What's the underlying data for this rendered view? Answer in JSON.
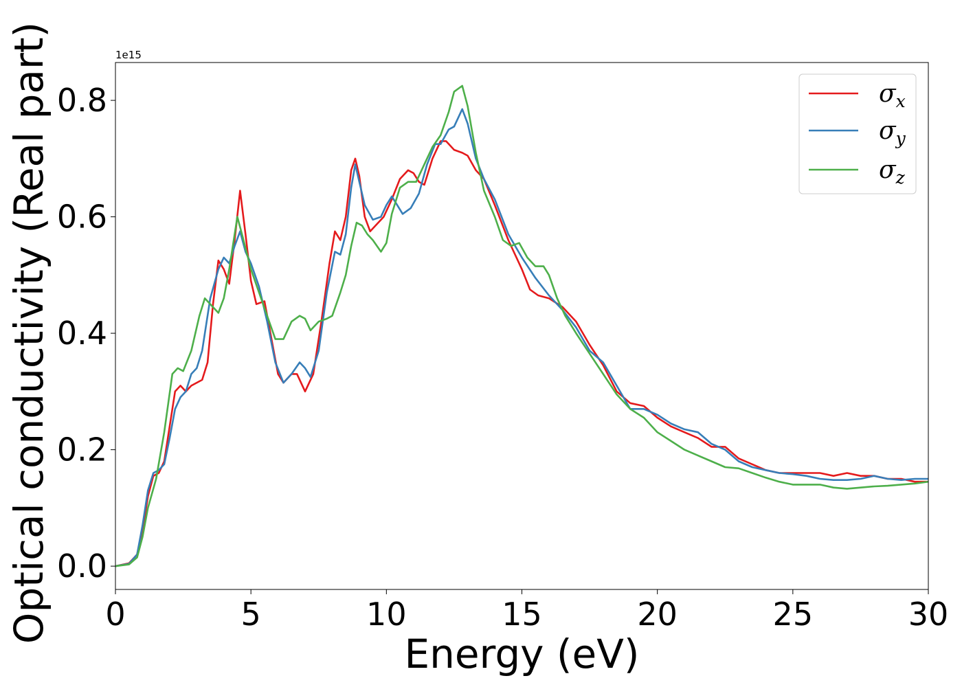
{
  "chart_data": {
    "type": "line",
    "title": "",
    "xlabel": "Energy (eV)",
    "ylabel": "Optical conductivity (Real part)",
    "y_offset_label": "1e15",
    "xlim": [
      0,
      30
    ],
    "ylim": [
      -0.04,
      0.865
    ],
    "xticks": [
      0,
      5,
      10,
      15,
      20,
      25,
      30
    ],
    "xtick_labels": [
      "0",
      "5",
      "10",
      "15",
      "20",
      "25",
      "30"
    ],
    "yticks": [
      0.0,
      0.2,
      0.4,
      0.6,
      0.8
    ],
    "ytick_labels": [
      "0.0",
      "0.2",
      "0.4",
      "0.6",
      "0.8"
    ],
    "grid": false,
    "legend_position": "top-right",
    "series": [
      {
        "name": "σ",
        "subscript": "x",
        "color": "#e41a1c",
        "points": [
          [
            0,
            0
          ],
          [
            0.5,
            0.005
          ],
          [
            0.8,
            0.02
          ],
          [
            1,
            0.06
          ],
          [
            1.2,
            0.12
          ],
          [
            1.4,
            0.155
          ],
          [
            1.6,
            0.16
          ],
          [
            1.8,
            0.18
          ],
          [
            2,
            0.24
          ],
          [
            2.2,
            0.3
          ],
          [
            2.4,
            0.31
          ],
          [
            2.6,
            0.3
          ],
          [
            2.8,
            0.31
          ],
          [
            3,
            0.315
          ],
          [
            3.2,
            0.32
          ],
          [
            3.4,
            0.35
          ],
          [
            3.6,
            0.45
          ],
          [
            3.8,
            0.525
          ],
          [
            4,
            0.51
          ],
          [
            4.2,
            0.485
          ],
          [
            4.4,
            0.56
          ],
          [
            4.6,
            0.645
          ],
          [
            4.8,
            0.57
          ],
          [
            5,
            0.49
          ],
          [
            5.2,
            0.45
          ],
          [
            5.5,
            0.455
          ],
          [
            5.8,
            0.38
          ],
          [
            6.0,
            0.33
          ],
          [
            6.2,
            0.315
          ],
          [
            6.5,
            0.33
          ],
          [
            6.7,
            0.33
          ],
          [
            7.0,
            0.3
          ],
          [
            7.3,
            0.33
          ],
          [
            7.6,
            0.42
          ],
          [
            7.9,
            0.52
          ],
          [
            8.1,
            0.575
          ],
          [
            8.3,
            0.56
          ],
          [
            8.5,
            0.6
          ],
          [
            8.7,
            0.68
          ],
          [
            8.85,
            0.7
          ],
          [
            9.0,
            0.67
          ],
          [
            9.2,
            0.6
          ],
          [
            9.4,
            0.575
          ],
          [
            9.6,
            0.585
          ],
          [
            9.9,
            0.6
          ],
          [
            10.2,
            0.63
          ],
          [
            10.5,
            0.665
          ],
          [
            10.8,
            0.68
          ],
          [
            11.0,
            0.675
          ],
          [
            11.2,
            0.66
          ],
          [
            11.4,
            0.655
          ],
          [
            11.7,
            0.7
          ],
          [
            12.0,
            0.73
          ],
          [
            12.2,
            0.73
          ],
          [
            12.5,
            0.715
          ],
          [
            12.8,
            0.71
          ],
          [
            13.0,
            0.705
          ],
          [
            13.3,
            0.68
          ],
          [
            13.6,
            0.665
          ],
          [
            14.0,
            0.62
          ],
          [
            14.5,
            0.56
          ],
          [
            15.0,
            0.51
          ],
          [
            15.3,
            0.475
          ],
          [
            15.6,
            0.465
          ],
          [
            16.0,
            0.46
          ],
          [
            16.5,
            0.445
          ],
          [
            17.0,
            0.42
          ],
          [
            17.5,
            0.38
          ],
          [
            18.0,
            0.345
          ],
          [
            18.5,
            0.3
          ],
          [
            19.0,
            0.28
          ],
          [
            19.5,
            0.275
          ],
          [
            20.0,
            0.255
          ],
          [
            20.5,
            0.24
          ],
          [
            21.0,
            0.23
          ],
          [
            21.5,
            0.22
          ],
          [
            22.0,
            0.205
          ],
          [
            22.5,
            0.205
          ],
          [
            23.0,
            0.185
          ],
          [
            23.5,
            0.175
          ],
          [
            24.0,
            0.165
          ],
          [
            24.5,
            0.16
          ],
          [
            25.0,
            0.16
          ],
          [
            25.5,
            0.16
          ],
          [
            26.0,
            0.16
          ],
          [
            26.5,
            0.155
          ],
          [
            27.0,
            0.16
          ],
          [
            27.5,
            0.155
          ],
          [
            28.0,
            0.155
          ],
          [
            28.5,
            0.15
          ],
          [
            29.0,
            0.15
          ],
          [
            29.5,
            0.145
          ],
          [
            30.0,
            0.145
          ]
        ]
      },
      {
        "name": "σ",
        "subscript": "y",
        "color": "#377eb8",
        "points": [
          [
            0,
            0
          ],
          [
            0.5,
            0.004
          ],
          [
            0.8,
            0.02
          ],
          [
            1,
            0.07
          ],
          [
            1.2,
            0.13
          ],
          [
            1.4,
            0.16
          ],
          [
            1.6,
            0.165
          ],
          [
            1.8,
            0.175
          ],
          [
            2,
            0.22
          ],
          [
            2.2,
            0.27
          ],
          [
            2.4,
            0.29
          ],
          [
            2.6,
            0.3
          ],
          [
            2.8,
            0.33
          ],
          [
            3,
            0.34
          ],
          [
            3.2,
            0.37
          ],
          [
            3.5,
            0.46
          ],
          [
            3.8,
            0.51
          ],
          [
            4.0,
            0.53
          ],
          [
            4.2,
            0.52
          ],
          [
            4.4,
            0.55
          ],
          [
            4.6,
            0.575
          ],
          [
            4.8,
            0.54
          ],
          [
            5.0,
            0.52
          ],
          [
            5.3,
            0.48
          ],
          [
            5.6,
            0.42
          ],
          [
            5.9,
            0.35
          ],
          [
            6.2,
            0.315
          ],
          [
            6.5,
            0.33
          ],
          [
            6.8,
            0.35
          ],
          [
            7.0,
            0.34
          ],
          [
            7.2,
            0.325
          ],
          [
            7.5,
            0.37
          ],
          [
            7.8,
            0.47
          ],
          [
            8.1,
            0.54
          ],
          [
            8.3,
            0.535
          ],
          [
            8.5,
            0.57
          ],
          [
            8.7,
            0.65
          ],
          [
            8.85,
            0.69
          ],
          [
            9.0,
            0.66
          ],
          [
            9.2,
            0.62
          ],
          [
            9.5,
            0.595
          ],
          [
            9.8,
            0.6
          ],
          [
            10.0,
            0.62
          ],
          [
            10.2,
            0.635
          ],
          [
            10.4,
            0.62
          ],
          [
            10.6,
            0.605
          ],
          [
            10.9,
            0.615
          ],
          [
            11.2,
            0.64
          ],
          [
            11.5,
            0.69
          ],
          [
            11.8,
            0.725
          ],
          [
            12.0,
            0.725
          ],
          [
            12.3,
            0.75
          ],
          [
            12.5,
            0.755
          ],
          [
            12.8,
            0.785
          ],
          [
            13.0,
            0.76
          ],
          [
            13.3,
            0.7
          ],
          [
            13.6,
            0.665
          ],
          [
            14.0,
            0.63
          ],
          [
            14.5,
            0.57
          ],
          [
            15.0,
            0.53
          ],
          [
            15.5,
            0.495
          ],
          [
            16.0,
            0.465
          ],
          [
            16.5,
            0.44
          ],
          [
            17.0,
            0.41
          ],
          [
            17.5,
            0.37
          ],
          [
            18.0,
            0.35
          ],
          [
            18.5,
            0.31
          ],
          [
            19.0,
            0.27
          ],
          [
            19.5,
            0.27
          ],
          [
            20.0,
            0.26
          ],
          [
            20.5,
            0.245
          ],
          [
            21.0,
            0.235
          ],
          [
            21.5,
            0.23
          ],
          [
            22.0,
            0.21
          ],
          [
            22.5,
            0.2
          ],
          [
            23.0,
            0.18
          ],
          [
            23.5,
            0.17
          ],
          [
            24.0,
            0.165
          ],
          [
            24.5,
            0.16
          ],
          [
            25.0,
            0.158
          ],
          [
            25.5,
            0.155
          ],
          [
            26.0,
            0.15
          ],
          [
            26.5,
            0.148
          ],
          [
            27.0,
            0.148
          ],
          [
            27.5,
            0.15
          ],
          [
            28.0,
            0.155
          ],
          [
            28.5,
            0.15
          ],
          [
            29.0,
            0.148
          ],
          [
            29.5,
            0.15
          ],
          [
            30.0,
            0.15
          ]
        ]
      },
      {
        "name": "σ",
        "subscript": "z",
        "color": "#4daf4a",
        "points": [
          [
            0,
            0
          ],
          [
            0.5,
            0.003
          ],
          [
            0.8,
            0.015
          ],
          [
            1,
            0.05
          ],
          [
            1.2,
            0.1
          ],
          [
            1.5,
            0.15
          ],
          [
            1.8,
            0.23
          ],
          [
            2.1,
            0.33
          ],
          [
            2.3,
            0.34
          ],
          [
            2.5,
            0.335
          ],
          [
            2.8,
            0.37
          ],
          [
            3.1,
            0.43
          ],
          [
            3.3,
            0.46
          ],
          [
            3.5,
            0.45
          ],
          [
            3.8,
            0.435
          ],
          [
            4.0,
            0.46
          ],
          [
            4.2,
            0.51
          ],
          [
            4.5,
            0.6
          ],
          [
            4.7,
            0.565
          ],
          [
            5.0,
            0.51
          ],
          [
            5.3,
            0.47
          ],
          [
            5.6,
            0.43
          ],
          [
            5.9,
            0.39
          ],
          [
            6.2,
            0.39
          ],
          [
            6.5,
            0.42
          ],
          [
            6.8,
            0.43
          ],
          [
            7.0,
            0.425
          ],
          [
            7.2,
            0.405
          ],
          [
            7.5,
            0.42
          ],
          [
            7.8,
            0.425
          ],
          [
            8.0,
            0.43
          ],
          [
            8.3,
            0.47
          ],
          [
            8.5,
            0.5
          ],
          [
            8.7,
            0.55
          ],
          [
            8.9,
            0.59
          ],
          [
            9.1,
            0.585
          ],
          [
            9.3,
            0.57
          ],
          [
            9.5,
            0.56
          ],
          [
            9.8,
            0.54
          ],
          [
            10.0,
            0.555
          ],
          [
            10.2,
            0.605
          ],
          [
            10.5,
            0.65
          ],
          [
            10.8,
            0.66
          ],
          [
            11.1,
            0.66
          ],
          [
            11.4,
            0.69
          ],
          [
            11.7,
            0.72
          ],
          [
            12.0,
            0.74
          ],
          [
            12.3,
            0.78
          ],
          [
            12.5,
            0.815
          ],
          [
            12.8,
            0.825
          ],
          [
            13.0,
            0.79
          ],
          [
            13.3,
            0.71
          ],
          [
            13.6,
            0.645
          ],
          [
            14.0,
            0.6
          ],
          [
            14.3,
            0.56
          ],
          [
            14.6,
            0.55
          ],
          [
            14.9,
            0.555
          ],
          [
            15.2,
            0.53
          ],
          [
            15.5,
            0.515
          ],
          [
            15.8,
            0.515
          ],
          [
            16.0,
            0.5
          ],
          [
            16.3,
            0.46
          ],
          [
            16.6,
            0.43
          ],
          [
            17.0,
            0.4
          ],
          [
            17.5,
            0.365
          ],
          [
            18.0,
            0.33
          ],
          [
            18.5,
            0.295
          ],
          [
            19.0,
            0.27
          ],
          [
            19.5,
            0.255
          ],
          [
            20.0,
            0.23
          ],
          [
            20.5,
            0.215
          ],
          [
            21.0,
            0.2
          ],
          [
            21.5,
            0.19
          ],
          [
            22.0,
            0.18
          ],
          [
            22.5,
            0.17
          ],
          [
            23.0,
            0.168
          ],
          [
            23.5,
            0.16
          ],
          [
            24.0,
            0.152
          ],
          [
            24.5,
            0.145
          ],
          [
            25.0,
            0.14
          ],
          [
            25.5,
            0.14
          ],
          [
            26.0,
            0.14
          ],
          [
            26.5,
            0.135
          ],
          [
            27.0,
            0.133
          ],
          [
            27.5,
            0.135
          ],
          [
            28.0,
            0.137
          ],
          [
            28.5,
            0.138
          ],
          [
            29.0,
            0.14
          ],
          [
            29.5,
            0.142
          ],
          [
            30.0,
            0.145
          ]
        ]
      }
    ]
  }
}
